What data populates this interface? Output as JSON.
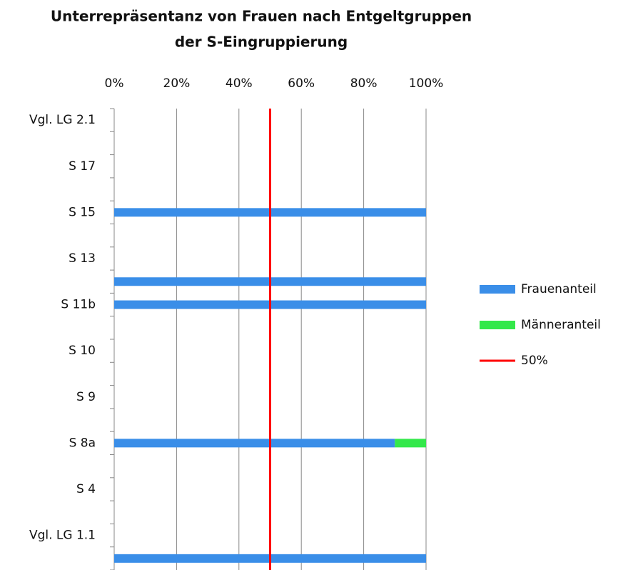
{
  "chart_data": {
    "type": "stacked_barh",
    "title": [
      "Unterrepräsentanz von Frauen nach Entgeltgruppen",
      "der S-Eingruppierung"
    ],
    "categories": [
      "Vgl. LG 2.1",
      null,
      "S 17",
      null,
      "S 15",
      null,
      "S 13",
      null,
      "S 11b",
      null,
      "S 10",
      null,
      "S 9",
      null,
      "S 8a",
      null,
      "S 4",
      null,
      "Vgl. LG 1.1",
      null
    ],
    "series": [
      {
        "name": "Frauenanteil",
        "color": "#3a8ee8",
        "values": [
          null,
          null,
          null,
          null,
          100,
          null,
          null,
          100,
          100,
          null,
          null,
          null,
          null,
          null,
          90,
          null,
          null,
          null,
          null,
          100
        ]
      },
      {
        "name": "Männeranteil",
        "color": "#33e84a",
        "values": [
          null,
          null,
          null,
          null,
          0,
          null,
          null,
          0,
          0,
          null,
          null,
          null,
          null,
          null,
          10,
          null,
          null,
          null,
          null,
          0
        ]
      }
    ],
    "reference_line": {
      "name": "50%",
      "value": 50,
      "color": "#ff0000"
    },
    "xlim": [
      0,
      100
    ],
    "xticks": [
      {
        "value": 0,
        "label": "0%"
      },
      {
        "value": 20,
        "label": "20%"
      },
      {
        "value": 40,
        "label": "40%"
      },
      {
        "value": 60,
        "label": "60%"
      },
      {
        "value": 80,
        "label": "80%"
      },
      {
        "value": 100,
        "label": "100%"
      }
    ],
    "grid": true,
    "legend": "right"
  }
}
